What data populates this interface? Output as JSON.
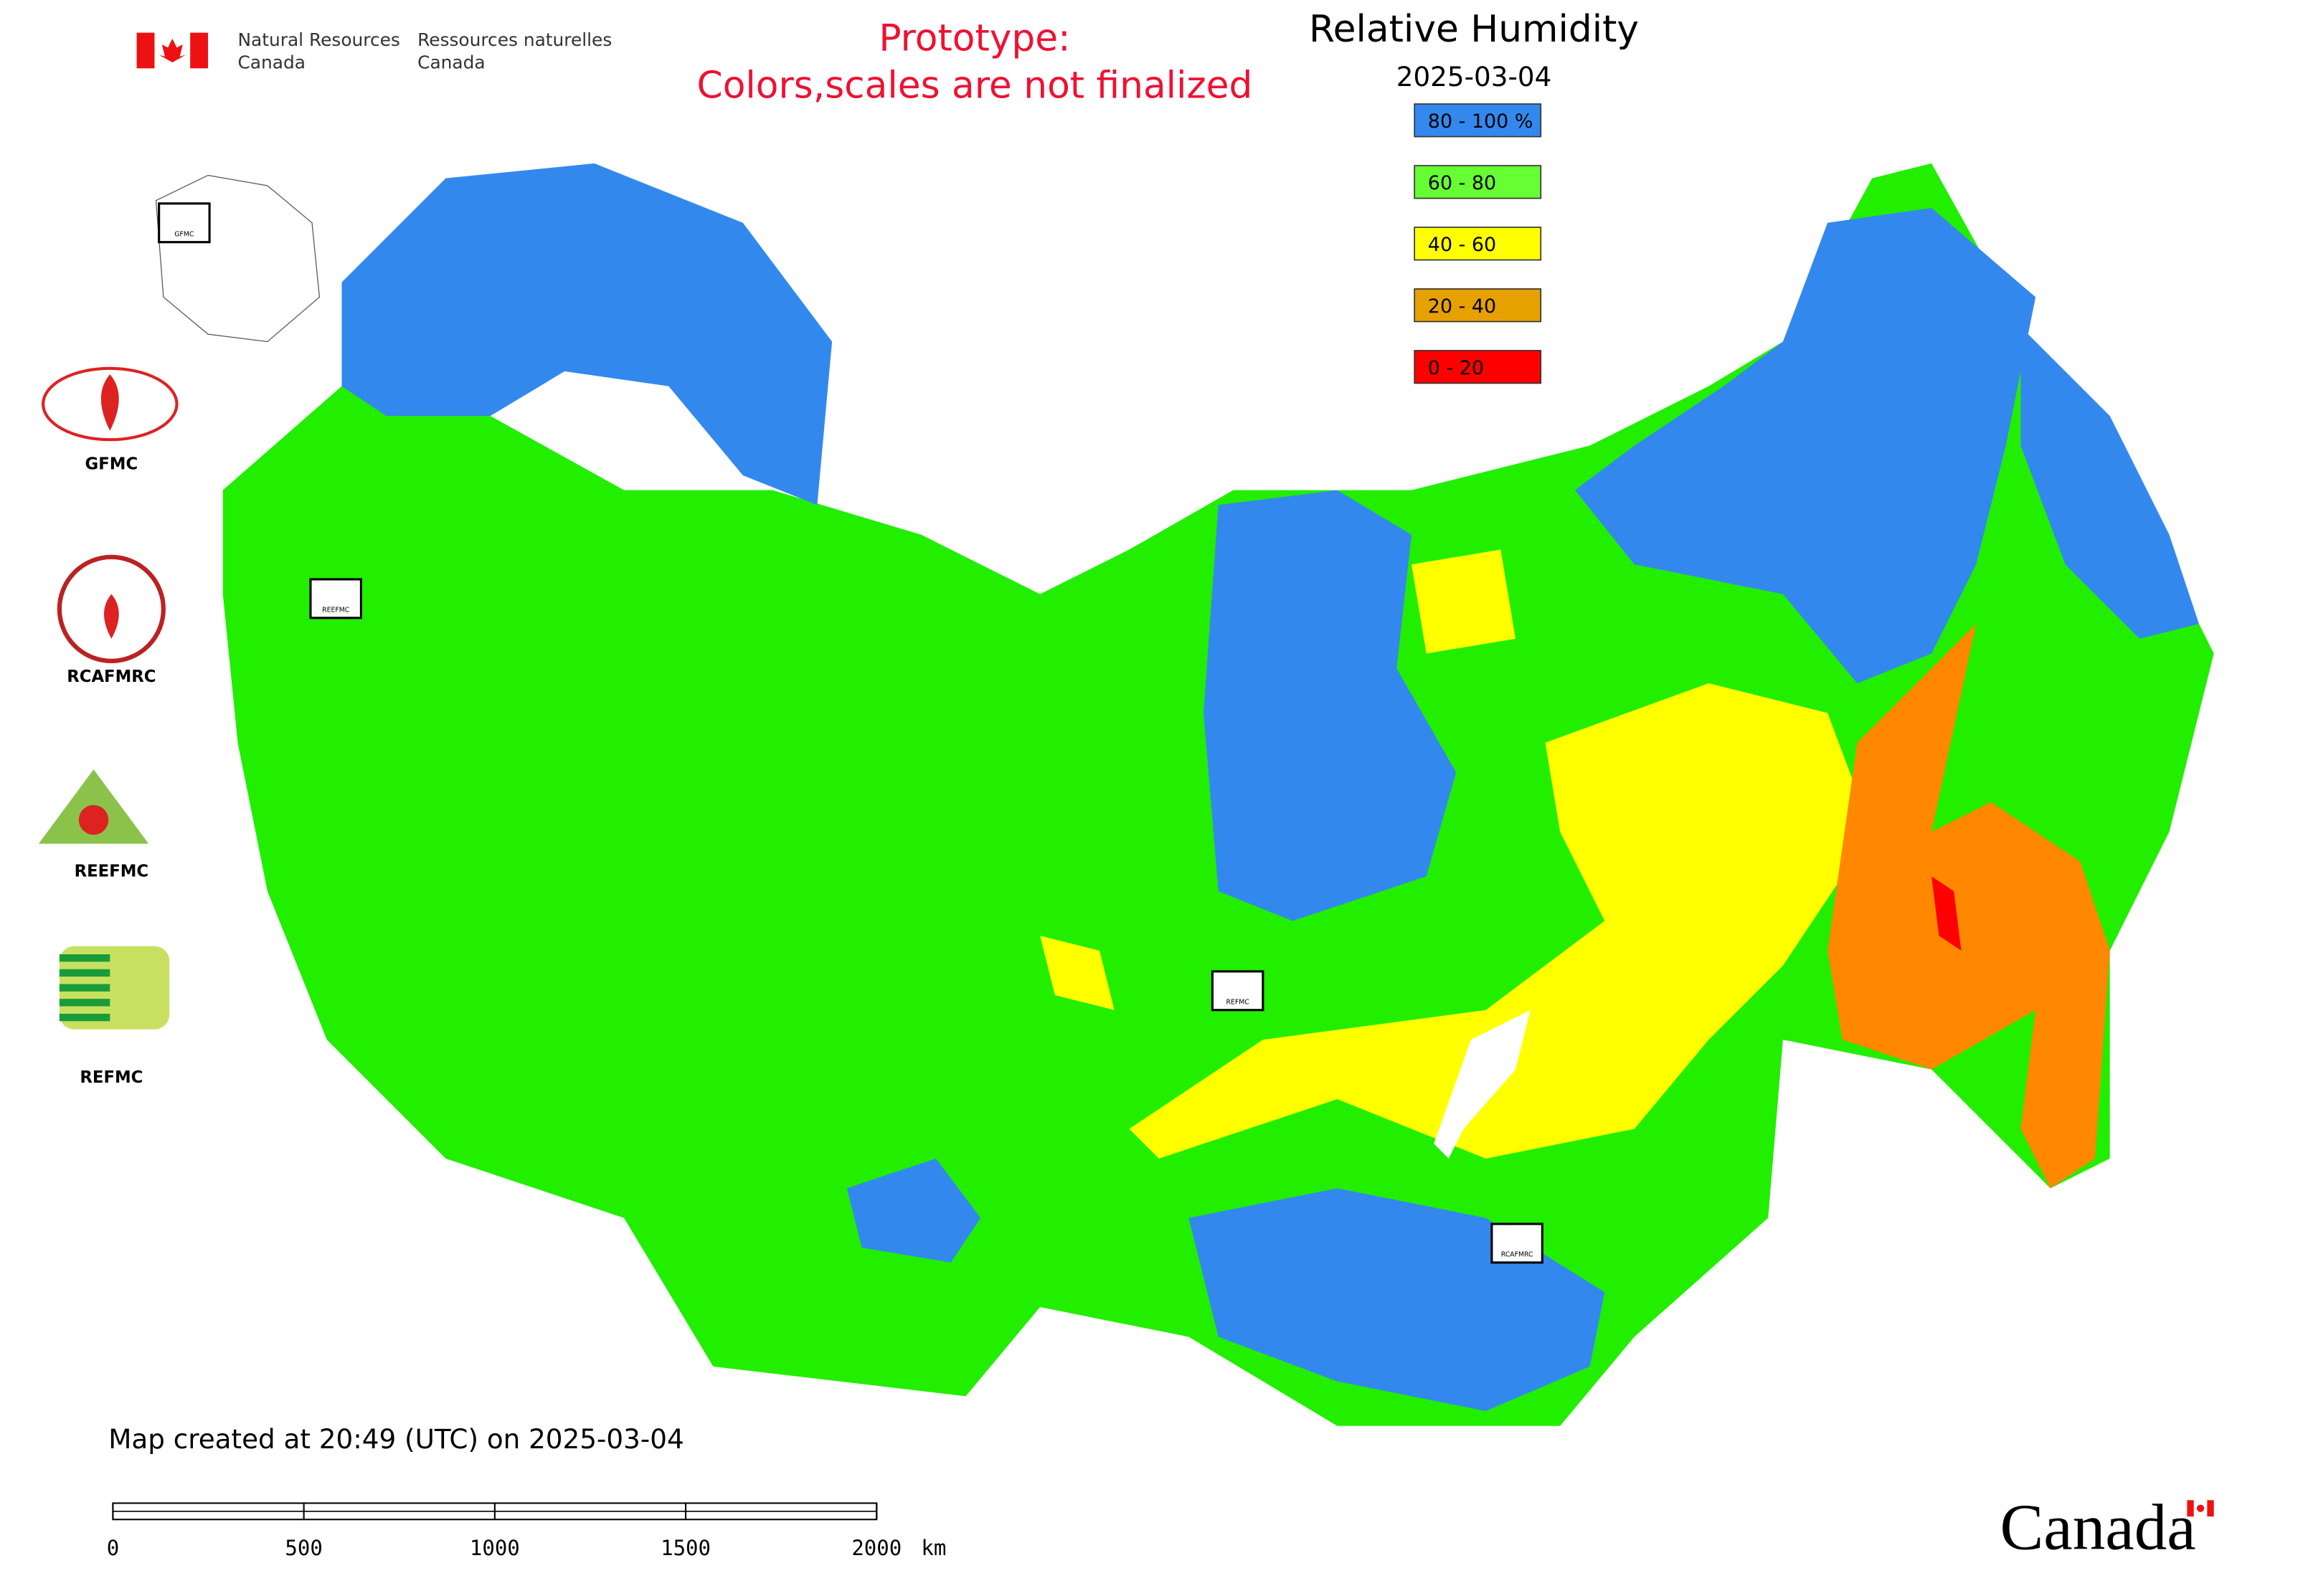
{
  "header": {
    "agency_en": [
      "Natural Resources",
      "Canada"
    ],
    "agency_fr": [
      "Ressources naturelles",
      "Canada"
    ]
  },
  "notice": [
    "Prototype:",
    "Colors,scales are not finalized"
  ],
  "title": "Relative Humidity",
  "date": "2025-03-04",
  "legend": [
    {
      "label": "80 - 100 %",
      "color": "#3388ee"
    },
    {
      "label": "60 - 80",
      "color": "#66ff33"
    },
    {
      "label": "40 - 60",
      "color": "#ffff00"
    },
    {
      "label": "20 - 40",
      "color": "#e6a000"
    },
    {
      "label": "0 - 20",
      "color": "#ff0000"
    }
  ],
  "logos": [
    "GFMC",
    "RCAFMRC",
    "REEFMC",
    "REFMC"
  ],
  "map_markers": [
    "GFMC",
    "REEFMC",
    "REFMC",
    "RCAFMRC"
  ],
  "footer": "Map created at 20:49 (UTC) on 2025-03-04",
  "scale_bar": {
    "ticks": [
      0,
      500,
      1000,
      1500,
      2000
    ],
    "unit": "km"
  },
  "wordmark": "Canada"
}
